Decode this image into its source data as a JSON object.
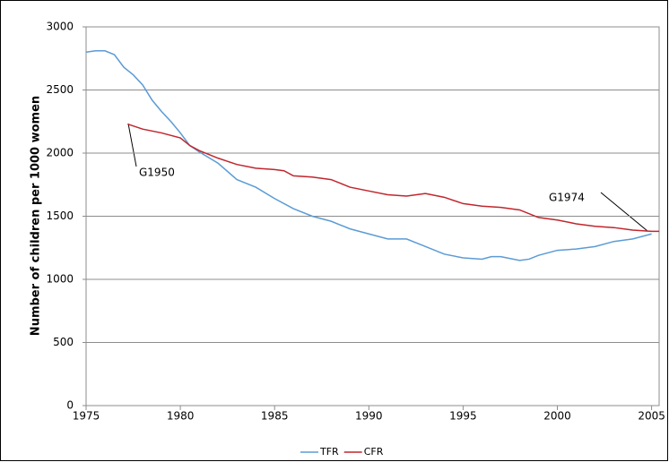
{
  "chart_data": {
    "type": "line",
    "y_label": "Number of children per 1000 women",
    "xlim": [
      1975,
      2005.4
    ],
    "xticks": [
      1975,
      1980,
      1985,
      1990,
      1995,
      2000,
      2005
    ],
    "ylim": [
      0,
      3000
    ],
    "yticks": [
      0,
      500,
      1000,
      1500,
      2000,
      2500,
      3000
    ],
    "grid": true,
    "legend": "bottom",
    "series": [
      {
        "name": "TFR",
        "color": "#5b9bd5",
        "x": [
          1975,
          1975.5,
          1976,
          1976.5,
          1977,
          1977.5,
          1978,
          1978.5,
          1979,
          1979.5,
          1980,
          1980.5,
          1981,
          1982,
          1983,
          1984,
          1985,
          1986,
          1987,
          1988,
          1989,
          1990,
          1991,
          1992,
          1993,
          1994,
          1995,
          1996,
          1996.5,
          1997,
          1998,
          1998.5,
          1999,
          2000,
          2001,
          2002,
          2003,
          2004,
          2005
        ],
        "values": [
          2800,
          2810,
          2810,
          2780,
          2680,
          2620,
          2540,
          2420,
          2330,
          2250,
          2160,
          2060,
          2010,
          1920,
          1790,
          1730,
          1640,
          1560,
          1500,
          1460,
          1400,
          1360,
          1320,
          1320,
          1260,
          1200,
          1170,
          1160,
          1180,
          1180,
          1150,
          1160,
          1190,
          1230,
          1240,
          1260,
          1300,
          1320,
          1360
        ]
      },
      {
        "name": "CFR",
        "color": "#c0262d",
        "x": [
          1977.2,
          1978,
          1979,
          1980,
          1980.5,
          1981,
          1982,
          1983,
          1984,
          1985,
          1985.5,
          1986,
          1987,
          1988,
          1989,
          1990,
          1991,
          1992,
          1993,
          1994,
          1995,
          1996,
          1997,
          1998,
          1999,
          2000,
          2001,
          2002,
          2003,
          2004,
          2005,
          2005.4
        ],
        "values": [
          2230,
          2190,
          2160,
          2120,
          2060,
          2020,
          1960,
          1910,
          1880,
          1870,
          1860,
          1820,
          1810,
          1790,
          1730,
          1700,
          1670,
          1660,
          1680,
          1650,
          1600,
          1580,
          1570,
          1550,
          1490,
          1470,
          1440,
          1420,
          1410,
          1390,
          1380,
          1380
        ]
      }
    ],
    "annotations": [
      {
        "text": "G1950"
      },
      {
        "text": "G1974"
      }
    ]
  }
}
